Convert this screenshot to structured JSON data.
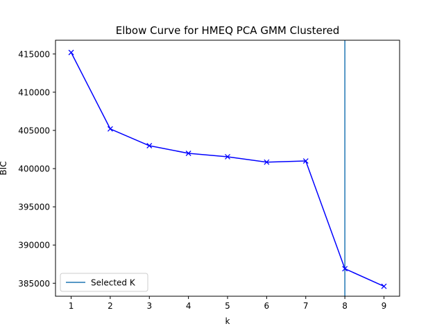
{
  "chart_data": {
    "type": "line",
    "title": "Elbow Curve for HMEQ PCA GMM Clustered",
    "xlabel": "k",
    "ylabel": "BIC",
    "x": [
      1,
      2,
      3,
      4,
      5,
      6,
      7,
      8,
      9
    ],
    "x_ticks": [
      "1",
      "2",
      "3",
      "4",
      "5",
      "6",
      "7",
      "8",
      "9"
    ],
    "y_ticks": [
      385000,
      390000,
      395000,
      400000,
      405000,
      410000,
      415000
    ],
    "y_tick_labels": [
      "385000",
      "390000",
      "395000",
      "400000",
      "405000",
      "410000",
      "415000"
    ],
    "xlim": [
      0.6,
      9.4
    ],
    "ylim": [
      383300,
      416800
    ],
    "grid": false,
    "legend_placement": "lower-left",
    "series": [
      {
        "values": [
          415200,
          405200,
          403000,
          402000,
          401550,
          400850,
          401000,
          386900,
          384600
        ],
        "color": "#0000ff",
        "marker": "x"
      }
    ],
    "vline": {
      "x": 8,
      "label": "Selected K",
      "color": "#1f77b4"
    }
  }
}
